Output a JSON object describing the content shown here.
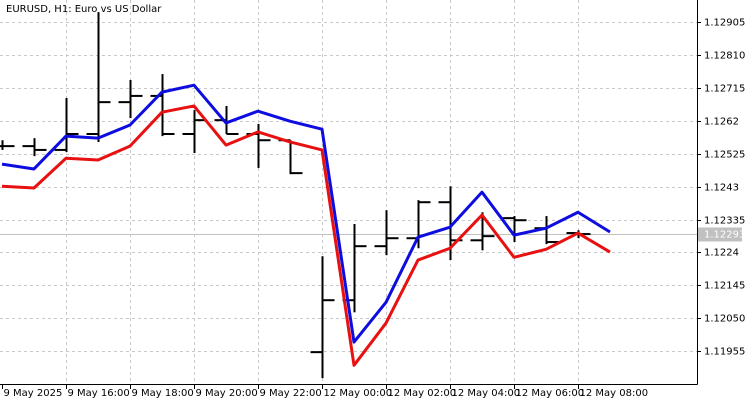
{
  "chart_data": {
    "type": "ohlc",
    "title": "EURUSD, H1:  Euro vs US Dollar",
    "categories": [
      "9 May 2025",
      null,
      "9 May 16:00",
      null,
      "9 May 18:00",
      null,
      "9 May 20:00",
      null,
      "9 May 22:00",
      null,
      "12 May 00:00",
      null,
      "12 May 02:00",
      null,
      "12 May 04:00",
      null,
      "12 May 06:00",
      null,
      "12 May 08:00",
      null
    ],
    "open": [
      1.12547,
      1.12547,
      1.12536,
      1.12582,
      1.12674,
      1.12692,
      1.12582,
      1.12622,
      1.12582,
      1.12564,
      1.11952,
      1.12102,
      1.12258,
      1.12281,
      1.12385,
      1.12275,
      1.12339,
      1.1231,
      1.12296,
      null
    ],
    "high": [
      1.12564,
      1.1257,
      1.12686,
      1.12934,
      1.12738,
      1.12755,
      1.12651,
      1.12663,
      1.12611,
      1.12564,
      1.12229,
      1.12322,
      1.12362,
      1.12391,
      1.12431,
      1.12356,
      1.12345,
      1.12345,
      1.12304,
      null
    ],
    "low": [
      1.12536,
      1.12518,
      1.1253,
      1.12559,
      1.12628,
      1.12576,
      1.12527,
      1.12582,
      1.12484,
      1.12466,
      1.11877,
      1.12067,
      1.12232,
      1.12252,
      1.12218,
      1.12246,
      1.1227,
      1.12264,
      1.12281,
      null
    ],
    "close": [
      1.12547,
      1.12536,
      1.12582,
      1.12674,
      1.12692,
      1.12582,
      1.12622,
      1.12582,
      1.12564,
      1.12469,
      1.12102,
      1.12258,
      1.12281,
      1.12385,
      1.12275,
      1.12287,
      1.12333,
      1.1227,
      1.12293,
      null
    ],
    "bar_color": "#000000",
    "lines": [
      {
        "color": "#0d0de0",
        "values": [
          1.12495,
          1.12481,
          1.12576,
          1.1257,
          1.12608,
          1.12703,
          1.12723,
          1.12614,
          1.12648,
          1.12619,
          1.12596,
          1.11981,
          1.12096,
          1.12284,
          1.12313,
          1.12414,
          1.1229,
          1.1231,
          1.12356,
          1.12299
        ]
      },
      {
        "color": "#e81010",
        "values": [
          1.12431,
          1.12426,
          1.12512,
          1.12507,
          1.12547,
          1.12645,
          1.12663,
          1.1255,
          1.12588,
          1.12559,
          1.12536,
          1.11914,
          1.12036,
          1.12218,
          1.12252,
          1.12348,
          1.12226,
          1.12249,
          1.12296,
          1.12241
        ]
      }
    ],
    "current_price": 1.12293,
    "ylim": [
      1.1186,
      1.12969
    ],
    "yticks": [
      1.12905,
      {
        "value": 1.1281,
        "label": "1.12810"
      },
      1.12715,
      1.1262,
      1.12525,
      1.1243,
      1.12335,
      1.1224,
      1.12145,
      {
        "value": 1.1205,
        "label": "1.12050"
      },
      1.11955
    ],
    "grid": true
  }
}
